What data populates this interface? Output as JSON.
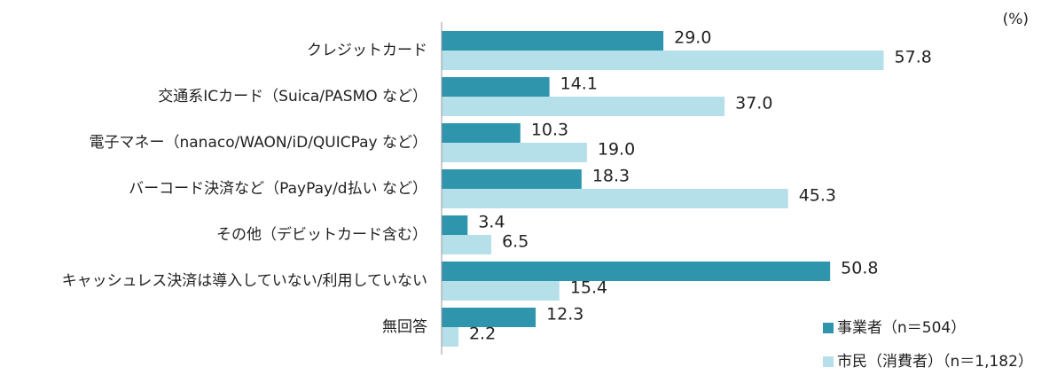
{
  "chart_data": {
    "type": "barh",
    "unit_label": "(%)",
    "categories": [
      "クレジットカード",
      "交通系ICカード（Suica/PASMO など）",
      "電子マネー（nanaco/WAON/iD/QUICPay など）",
      "バーコード決済など（PayPay/d払い など）",
      "その他（デビットカード含む）",
      "キャッシュレス決済は導入していない/利用していない",
      "無回答"
    ],
    "series": [
      {
        "name": "事業者（n＝504）",
        "color": "#2e95ad",
        "values": [
          29.0,
          14.1,
          10.3,
          18.3,
          3.4,
          50.8,
          12.3
        ],
        "value_labels": [
          "29.0",
          "14.1",
          "10.3",
          "18.3",
          "3.4",
          "50.8",
          "12.3"
        ]
      },
      {
        "name": "市民（消費者）（n＝1,182）",
        "color": "#b5e0ea",
        "values": [
          57.8,
          37.0,
          19.0,
          45.3,
          6.5,
          15.4,
          2.2
        ],
        "value_labels": [
          "57.8",
          "37.0",
          "19.0",
          "45.3",
          "6.5",
          "15.4",
          "2.2"
        ]
      }
    ],
    "xlim": [
      0,
      80
    ],
    "legend": "lower right"
  }
}
